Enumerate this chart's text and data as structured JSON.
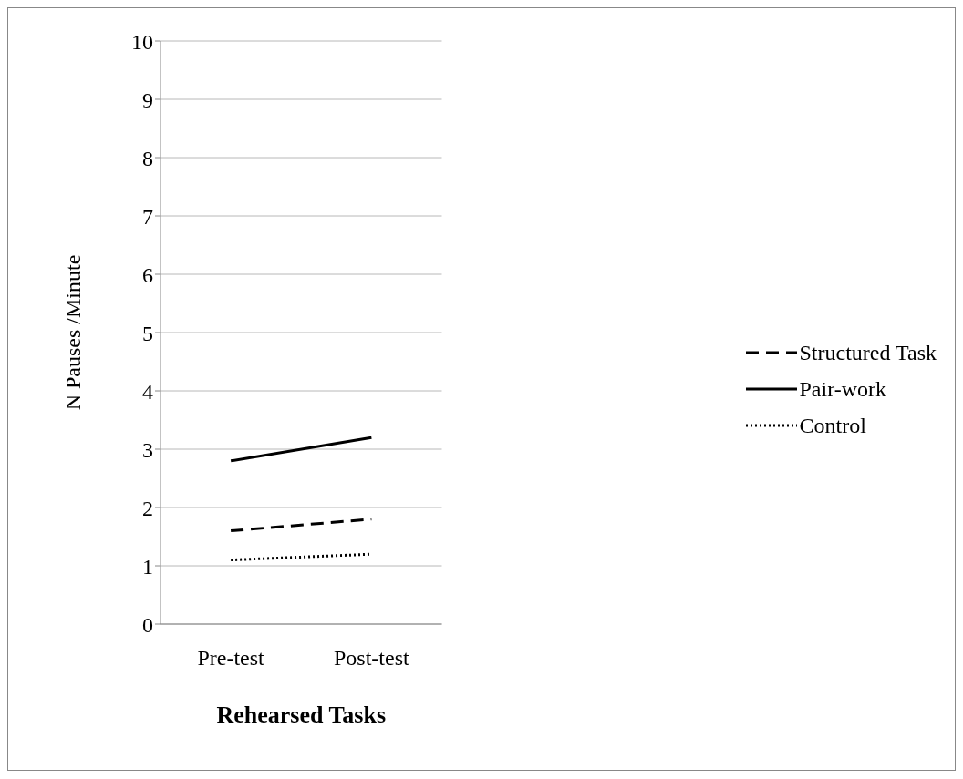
{
  "chart_data": {
    "type": "line",
    "xlabel": "Rehearsed Tasks",
    "ylabel": "N Pauses /Minute",
    "categories": [
      "Pre-test",
      "Post-test"
    ],
    "series": [
      {
        "name": "Structured Task",
        "color": "#000000",
        "values": [
          1.6,
          1.8
        ],
        "line_style": "dashed"
      },
      {
        "name": "Pair-work",
        "color": "#000000",
        "values": [
          2.8,
          3.2
        ],
        "line_style": "solid"
      },
      {
        "name": "Control",
        "color": "#000000",
        "values": [
          1.1,
          1.2
        ],
        "line_style": "dotted"
      }
    ],
    "ylim": [
      0,
      10
    ],
    "yticks": [
      0,
      1,
      2,
      3,
      4,
      5,
      6,
      7,
      8,
      9,
      10
    ],
    "grid": "y",
    "legend": "right"
  }
}
